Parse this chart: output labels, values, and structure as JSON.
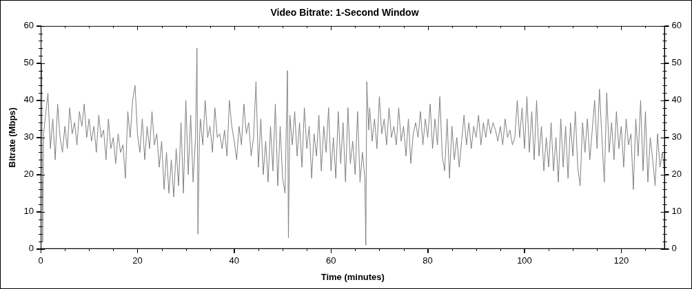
{
  "chart_data": {
    "type": "line",
    "title": "Video Bitrate: 1-Second Window",
    "xlabel": "Time (minutes)",
    "ylabel": "Bitrate (Mbps)",
    "xlim": [
      0,
      129
    ],
    "xticks": [
      0,
      {
        "value": 5,
        "label": null
      },
      {
        "value": 10,
        "label": null
      },
      {
        "value": 15,
        "label": null
      },
      20,
      {
        "value": 25,
        "label": null
      },
      {
        "value": 30,
        "label": null
      },
      {
        "value": 35,
        "label": null
      },
      40,
      {
        "value": 45,
        "label": null
      },
      {
        "value": 50,
        "label": null
      },
      {
        "value": 55,
        "label": null
      },
      60,
      {
        "value": 65,
        "label": null
      },
      {
        "value": 70,
        "label": null
      },
      {
        "value": 75,
        "label": null
      },
      80,
      {
        "value": 85,
        "label": null
      },
      {
        "value": 90,
        "label": null
      },
      {
        "value": 95,
        "label": null
      },
      100,
      {
        "value": 105,
        "label": null
      },
      {
        "value": 110,
        "label": null
      },
      {
        "value": 115,
        "label": null
      },
      120,
      {
        "value": 125,
        "label": null
      }
    ],
    "ylim": [
      0,
      60
    ],
    "yticks": [
      0,
      {
        "value": 2,
        "label": null
      },
      {
        "value": 4,
        "label": null
      },
      {
        "value": 6,
        "label": null
      },
      {
        "value": 8,
        "label": null
      },
      10,
      {
        "value": 12,
        "label": null
      },
      {
        "value": 14,
        "label": null
      },
      {
        "value": 16,
        "label": null
      },
      {
        "value": 18,
        "label": null
      },
      20,
      {
        "value": 22,
        "label": null
      },
      {
        "value": 24,
        "label": null
      },
      {
        "value": 26,
        "label": null
      },
      {
        "value": 28,
        "label": null
      },
      30,
      {
        "value": 32,
        "label": null
      },
      {
        "value": 34,
        "label": null
      },
      {
        "value": 36,
        "label": null
      },
      {
        "value": 38,
        "label": null
      },
      40,
      {
        "value": 42,
        "label": null
      },
      {
        "value": 44,
        "label": null
      },
      {
        "value": 46,
        "label": null
      },
      {
        "value": 48,
        "label": null
      },
      50,
      {
        "value": 52,
        "label": null
      },
      {
        "value": 54,
        "label": null
      },
      {
        "value": 56,
        "label": null
      },
      {
        "value": 58,
        "label": null
      },
      60
    ],
    "y2lim": [
      0,
      60
    ],
    "y2ticks": [
      0,
      {
        "value": 2,
        "label": null
      },
      {
        "value": 4,
        "label": null
      },
      {
        "value": 6,
        "label": null
      },
      {
        "value": 8,
        "label": null
      },
      10,
      {
        "value": 12,
        "label": null
      },
      {
        "value": 14,
        "label": null
      },
      {
        "value": 16,
        "label": null
      },
      {
        "value": 18,
        "label": null
      },
      20,
      {
        "value": 22,
        "label": null
      },
      {
        "value": 24,
        "label": null
      },
      {
        "value": 26,
        "label": null
      },
      {
        "value": 28,
        "label": null
      },
      30,
      {
        "value": 32,
        "label": null
      },
      {
        "value": 34,
        "label": null
      },
      {
        "value": 36,
        "label": null
      },
      {
        "value": 38,
        "label": null
      },
      40,
      {
        "value": 42,
        "label": null
      },
      {
        "value": 44,
        "label": null
      },
      {
        "value": 46,
        "label": null
      },
      {
        "value": 48,
        "label": null
      },
      50,
      {
        "value": 52,
        "label": null
      },
      {
        "value": 54,
        "label": null
      },
      {
        "value": 56,
        "label": null
      },
      {
        "value": 58,
        "label": null
      },
      60
    ],
    "grid": false,
    "legend": false,
    "marker": "none",
    "line_style": "solid",
    "series": [
      {
        "color": "#808080",
        "x": [
          0,
          0.2,
          0.4,
          0.6,
          1,
          1.5,
          2,
          2.5,
          3,
          3.5,
          4,
          4.5,
          5,
          5.5,
          6,
          6.5,
          7,
          7.5,
          8,
          8.5,
          9,
          9.5,
          10,
          10.5,
          11,
          11.5,
          12,
          12.5,
          13,
          13.5,
          14,
          14.5,
          15,
          15.5,
          16,
          16.5,
          17,
          17.5,
          18,
          18.5,
          19,
          19.5,
          20,
          20.5,
          21,
          21.5,
          22,
          22.5,
          23,
          23.5,
          24,
          24.5,
          25,
          25.5,
          26,
          26.5,
          27,
          27.5,
          28,
          28.5,
          29,
          29.5,
          30,
          30.5,
          31,
          31.5,
          32,
          32.3,
          32.5,
          32.8,
          33,
          33.5,
          34,
          34.5,
          35,
          35.5,
          36,
          36.5,
          37,
          37.5,
          38,
          38.5,
          39,
          39.5,
          40,
          40.5,
          41,
          41.5,
          42,
          42.5,
          43,
          43.5,
          44,
          44.5,
          45,
          45.5,
          46,
          46.5,
          47,
          47.5,
          48,
          48.5,
          49,
          49.5,
          50,
          50.5,
          51,
          51.2,
          51.5,
          52,
          52.5,
          53,
          53.5,
          54,
          54.5,
          55,
          55.5,
          56,
          56.5,
          57,
          57.5,
          58,
          58.5,
          59,
          59.5,
          60,
          60.5,
          61,
          61.5,
          62,
          62.5,
          63,
          63.5,
          64,
          64.5,
          65,
          65.5,
          66,
          66.5,
          67,
          67.2,
          67.4,
          67.8,
          68,
          68.5,
          69,
          69.5,
          70,
          70.5,
          71,
          71.5,
          72,
          72.5,
          73,
          73.5,
          74,
          74.5,
          75,
          75.5,
          76,
          76.5,
          77,
          77.5,
          78,
          78.5,
          79,
          79.5,
          80,
          80.5,
          81,
          81.5,
          82,
          82.5,
          83,
          83.5,
          84,
          84.5,
          85,
          85.5,
          86,
          86.5,
          87,
          87.5,
          88,
          88.5,
          89,
          89.5,
          90,
          90.5,
          91,
          91.5,
          92,
          92.5,
          93,
          93.5,
          94,
          94.5,
          95,
          95.5,
          96,
          96.5,
          97,
          97.5,
          98,
          98.5,
          99,
          99.5,
          100,
          100.5,
          101,
          101.5,
          102,
          102.5,
          103,
          103.5,
          104,
          104.5,
          105,
          105.5,
          106,
          106.5,
          107,
          107.5,
          108,
          108.5,
          109,
          109.5,
          110,
          110.5,
          111,
          111.5,
          112,
          112.5,
          113,
          113.5,
          114,
          114.5,
          115,
          115.5,
          116,
          116.5,
          117,
          117.5,
          118,
          118.5,
          119,
          119.5,
          120,
          120.5,
          121,
          121.5,
          122,
          122.5,
          123,
          123.5,
          124,
          124.5,
          125,
          125.5,
          126,
          126.5,
          127,
          127.5,
          128,
          128.5,
          129
        ],
        "values": [
          33,
          50,
          2,
          31,
          36,
          42,
          27,
          35,
          24,
          39,
          30,
          26,
          33,
          27,
          38,
          31,
          34,
          28,
          37,
          33,
          39,
          30,
          35,
          29,
          33,
          26,
          36,
          30,
          32,
          24,
          35,
          27,
          30,
          23,
          31,
          26,
          28,
          19,
          37,
          30,
          40,
          44,
          31,
          26,
          35,
          24,
          33,
          27,
          37,
          28,
          31,
          22,
          29,
          16,
          26,
          15,
          24,
          14,
          27,
          17,
          34,
          15,
          40,
          20,
          36,
          18,
          30,
          54,
          4,
          29,
          35,
          28,
          40,
          30,
          33,
          26,
          38,
          30,
          31,
          27,
          32,
          25,
          40,
          33,
          29,
          24,
          33,
          28,
          39,
          31,
          34,
          25,
          30,
          45,
          22,
          35,
          20,
          29,
          18,
          33,
          21,
          39,
          17,
          33,
          19,
          15,
          48,
          3,
          36,
          28,
          37,
          25,
          34,
          22,
          38,
          27,
          33,
          19,
          31,
          25,
          36,
          21,
          33,
          26,
          38,
          21,
          30,
          19,
          37,
          23,
          34,
          18,
          38,
          23,
          29,
          20,
          37,
          18,
          26,
          19,
          1,
          45,
          32,
          38,
          29,
          35,
          27,
          41,
          31,
          35,
          28,
          38,
          30,
          33,
          28,
          38,
          29,
          33,
          25,
          35,
          23,
          31,
          34,
          30,
          37,
          28,
          35,
          30,
          39,
          27,
          35,
          28,
          41,
          25,
          21,
          35,
          19,
          33,
          24,
          30,
          22,
          29,
          36,
          28,
          34,
          27,
          33,
          30,
          36,
          28,
          34,
          30,
          35,
          31,
          34,
          32,
          29,
          33,
          28,
          35,
          30,
          32,
          28,
          30,
          40,
          30,
          38,
          27,
          41,
          26,
          37,
          24,
          40,
          25,
          33,
          21,
          30,
          22,
          34,
          21,
          30,
          18,
          35,
          22,
          33,
          19,
          34,
          25,
          37,
          22,
          17,
          34,
          26,
          35,
          24,
          32,
          40,
          27,
          43,
          30,
          18,
          42,
          26,
          34,
          24,
          37,
          27,
          33,
          22,
          35,
          28,
          31,
          16,
          35,
          25,
          40,
          21,
          37,
          18,
          30,
          24,
          17,
          31,
          22,
          26,
          20
        ]
      }
    ]
  }
}
